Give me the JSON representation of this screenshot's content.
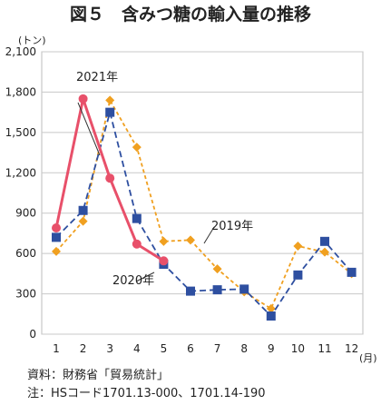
{
  "chart_data": {
    "type": "line",
    "title": "図５　含みつ糖の輸入量の推移",
    "y_unit": "(トン)",
    "x_unit": "(月)",
    "ylim": [
      0,
      2100
    ],
    "yticks": [
      0,
      300,
      600,
      900,
      1200,
      1500,
      1800,
      2100
    ],
    "ytick_labels": [
      "0",
      "300",
      "600",
      "900",
      "1,200",
      "1,500",
      "1,800",
      "2,100"
    ],
    "categories": [
      "1",
      "2",
      "3",
      "4",
      "5",
      "6",
      "7",
      "8",
      "9",
      "10",
      "11",
      "12"
    ],
    "grid": true,
    "series": [
      {
        "name": "2019年",
        "color": "#f0a020",
        "marker": "diamond",
        "line": "dotted",
        "values": [
          615,
          840,
          1740,
          1390,
          690,
          700,
          485,
          315,
          190,
          655,
          610,
          450
        ]
      },
      {
        "name": "2020年",
        "color": "#2e4fa0",
        "marker": "square",
        "line": "dashed",
        "values": [
          720,
          920,
          1650,
          860,
          520,
          320,
          330,
          335,
          135,
          440,
          690,
          460
        ]
      },
      {
        "name": "2021年",
        "color": "#e8506a",
        "marker": "circle",
        "line": "solid",
        "values": [
          790,
          1750,
          1160,
          670,
          545,
          null,
          null,
          null,
          null,
          null,
          null,
          null
        ]
      }
    ]
  },
  "notes": {
    "source": "資料：財務省「貿易統計」",
    "note": "注：HSコード1701.13-000、1701.14-190"
  }
}
